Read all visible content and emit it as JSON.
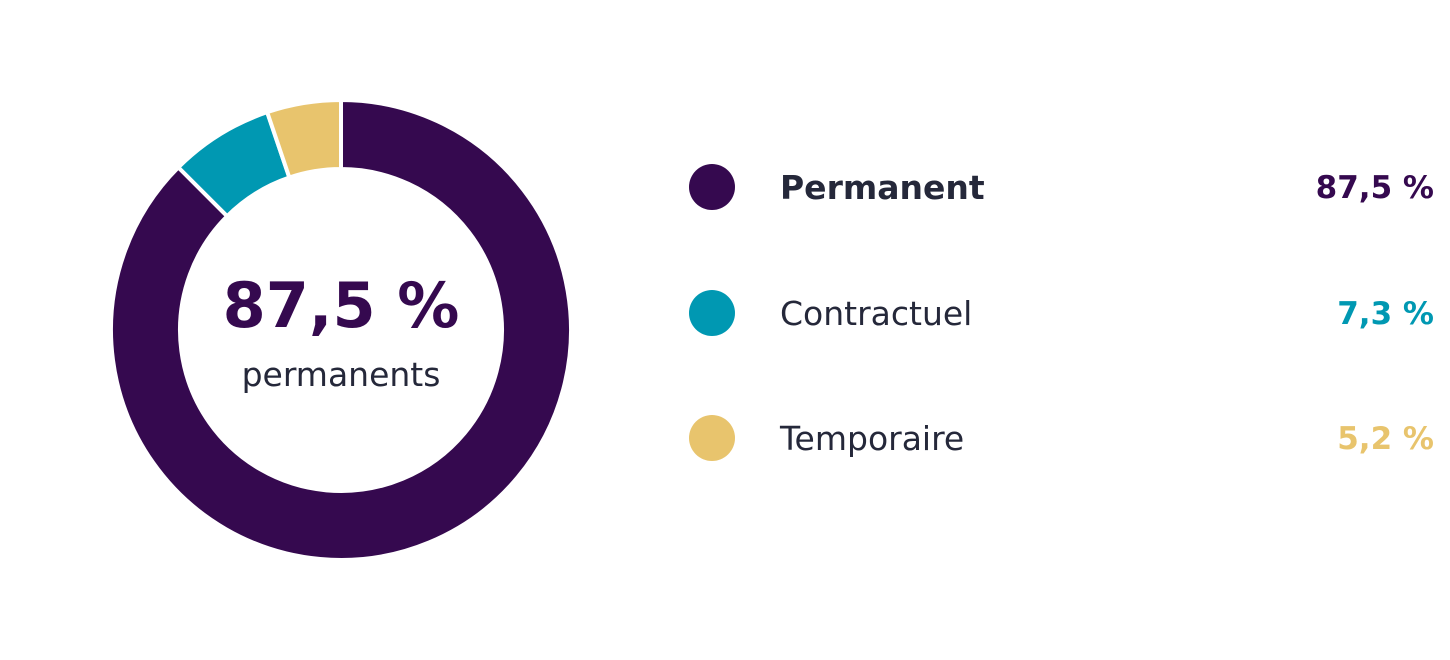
{
  "chart_data": {
    "type": "pie",
    "variant": "donut",
    "categories": [
      "Permanent",
      "Contractuel",
      "Temporaire"
    ],
    "values": [
      87.5,
      7.3,
      5.2
    ],
    "value_labels": [
      "87,5 %",
      "7,3 %",
      "5,2 %"
    ],
    "colors": [
      "#35094f",
      "#0098b2",
      "#e8c46d"
    ],
    "highlight_index": 0,
    "center": {
      "value": "87,5 %",
      "label": "permanents"
    },
    "legend_position": "right"
  }
}
